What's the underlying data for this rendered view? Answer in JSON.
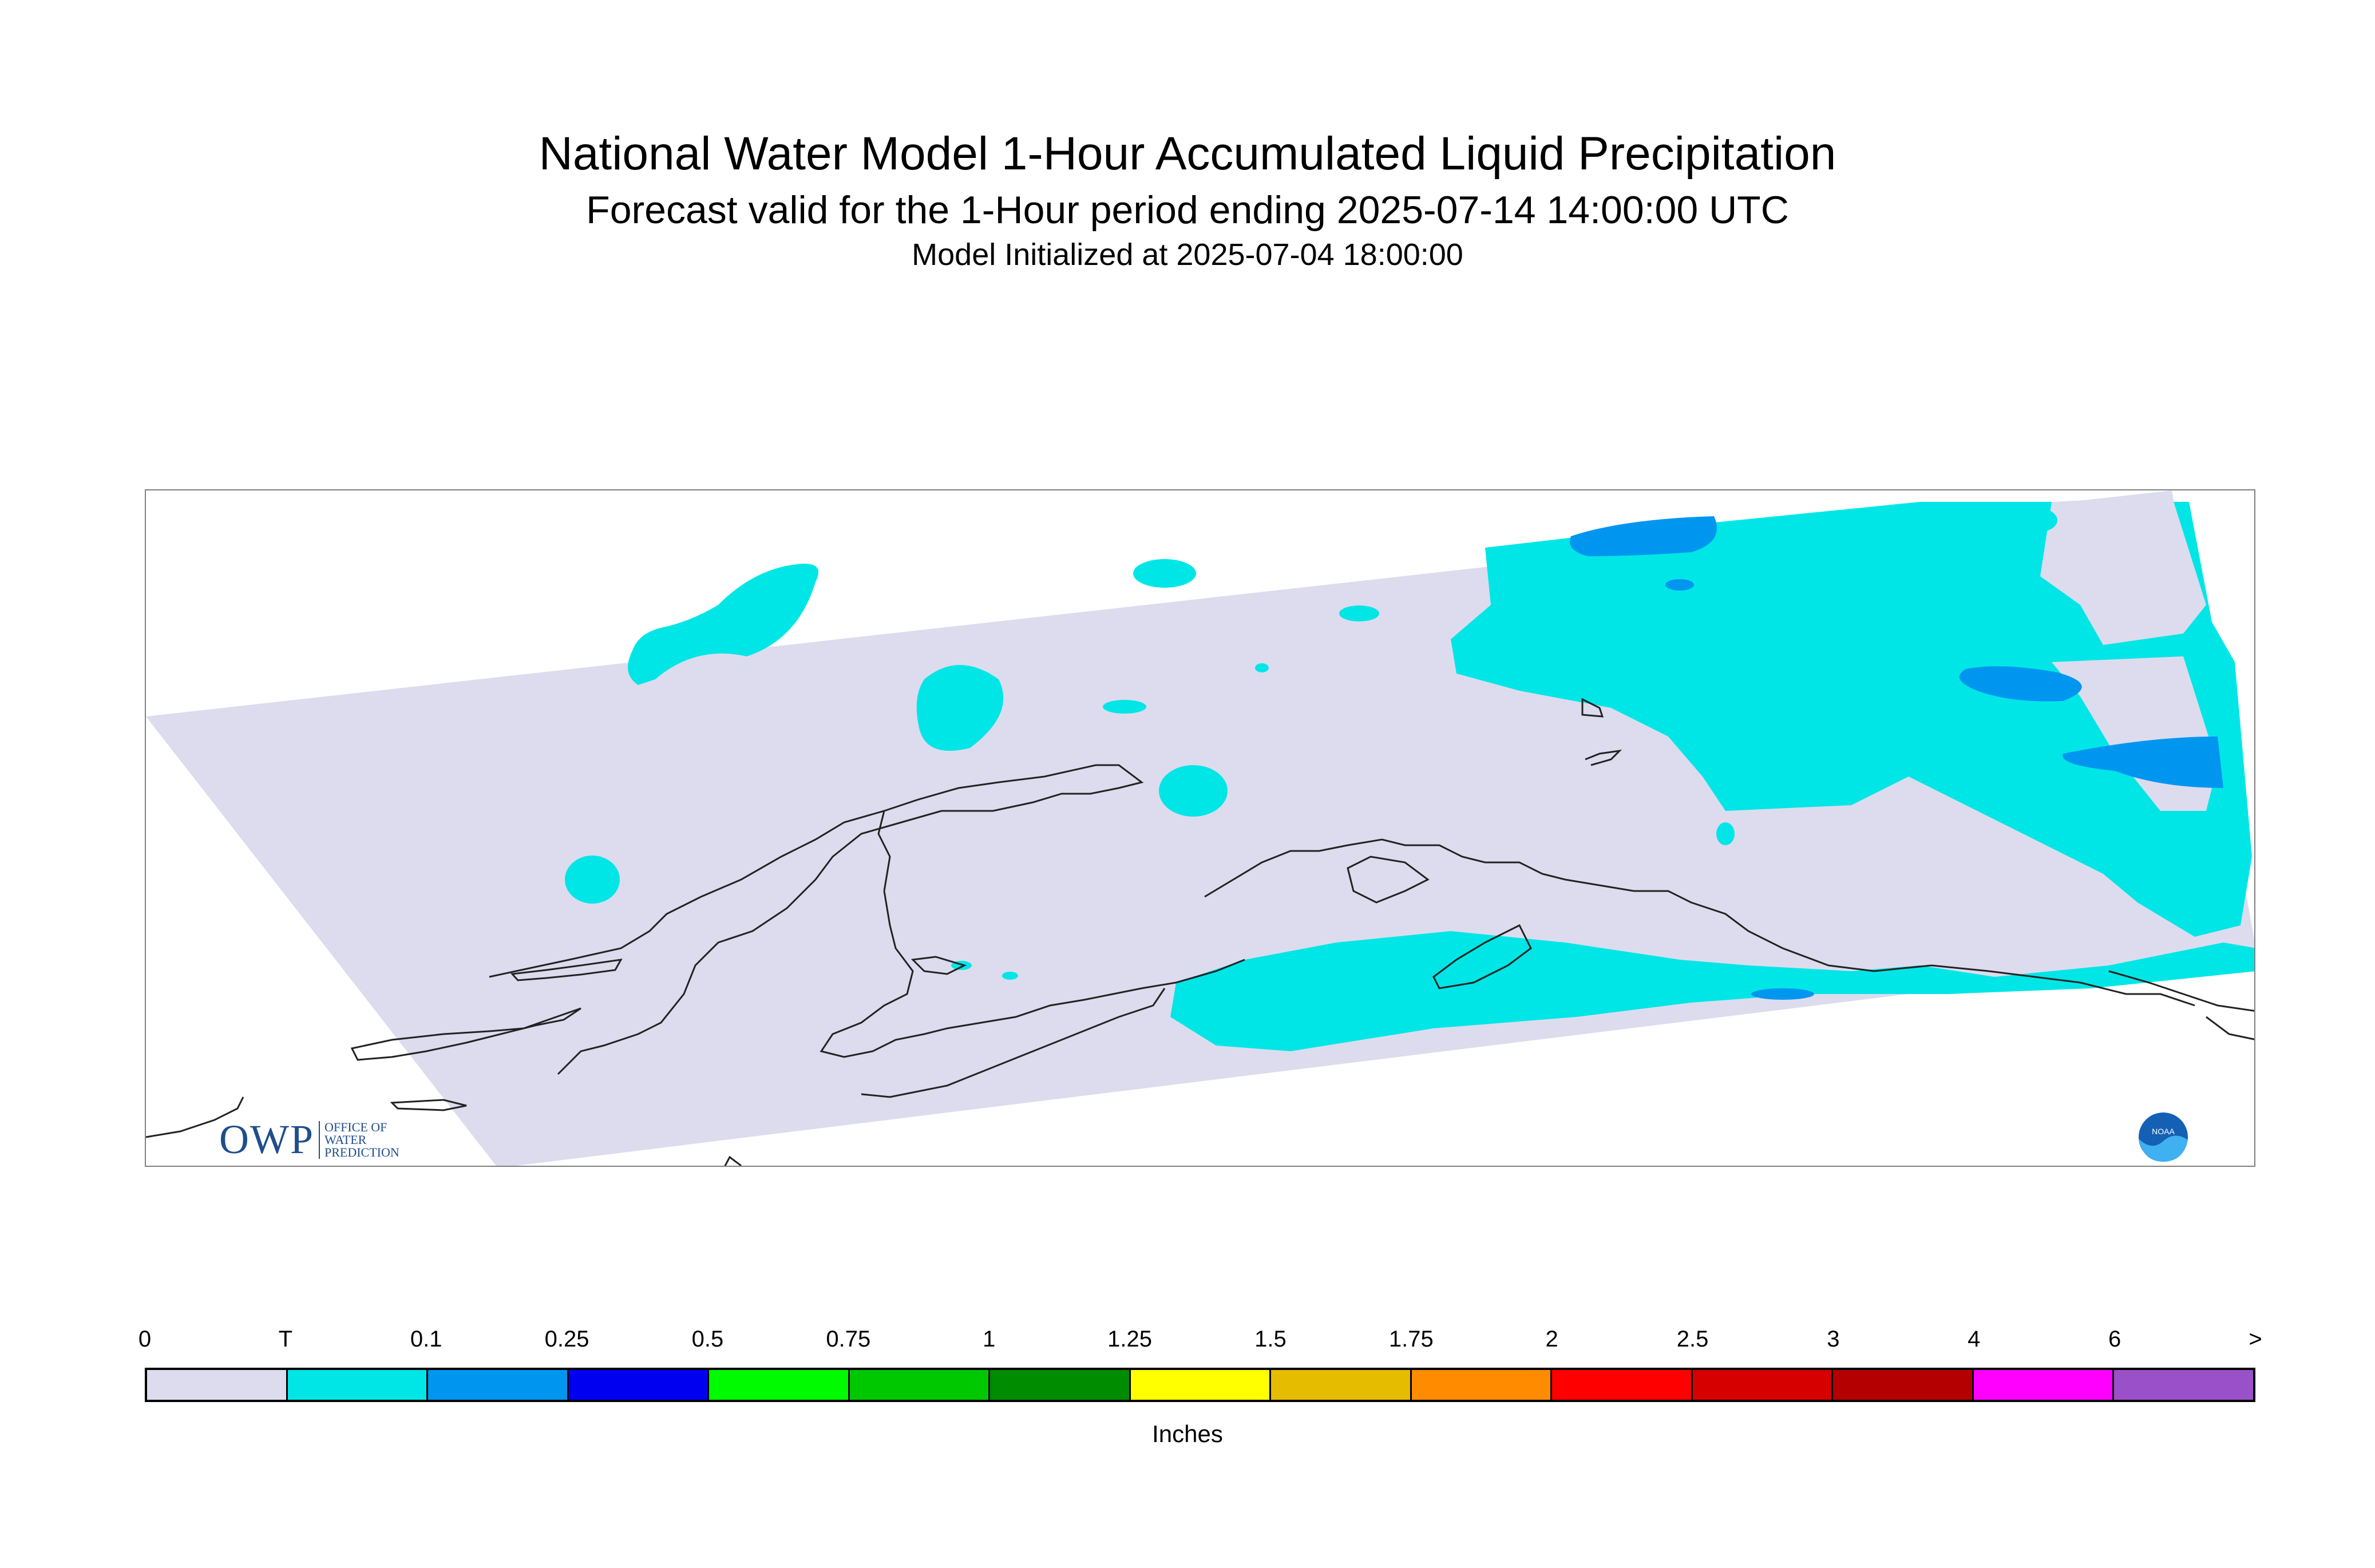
{
  "header": {
    "title": "National Water Model 1-Hour Accumulated Liquid Precipitation",
    "subtitle": "Forecast valid for the 1-Hour period ending 2025-07-14 14:00:00 UTC",
    "init": "Model Initialized at 2025-07-04 18:00:00"
  },
  "map": {
    "region": "Alaska",
    "background_color": "#dcdcee",
    "logos": {
      "owp_mark": "OWP",
      "owp_text": [
        "OFFICE OF",
        "WATER",
        "PREDICTION"
      ],
      "noaa": "NOAA"
    }
  },
  "legend": {
    "labels": [
      "0",
      "T",
      "0.1",
      "0.25",
      "0.5",
      "0.75",
      "1",
      "1.25",
      "1.5",
      "1.75",
      "2",
      "2.5",
      "3",
      "4",
      "6",
      ">"
    ],
    "colors": [
      "#dcdcee",
      "#00e6e6",
      "#0096f0",
      "#0000f0",
      "#00fa00",
      "#00c800",
      "#008c00",
      "#ffff00",
      "#e6bc00",
      "#ff8c00",
      "#ff0000",
      "#d60000",
      "#b40000",
      "#ff00ff",
      "#9a50c8"
    ],
    "unit": "Inches"
  }
}
